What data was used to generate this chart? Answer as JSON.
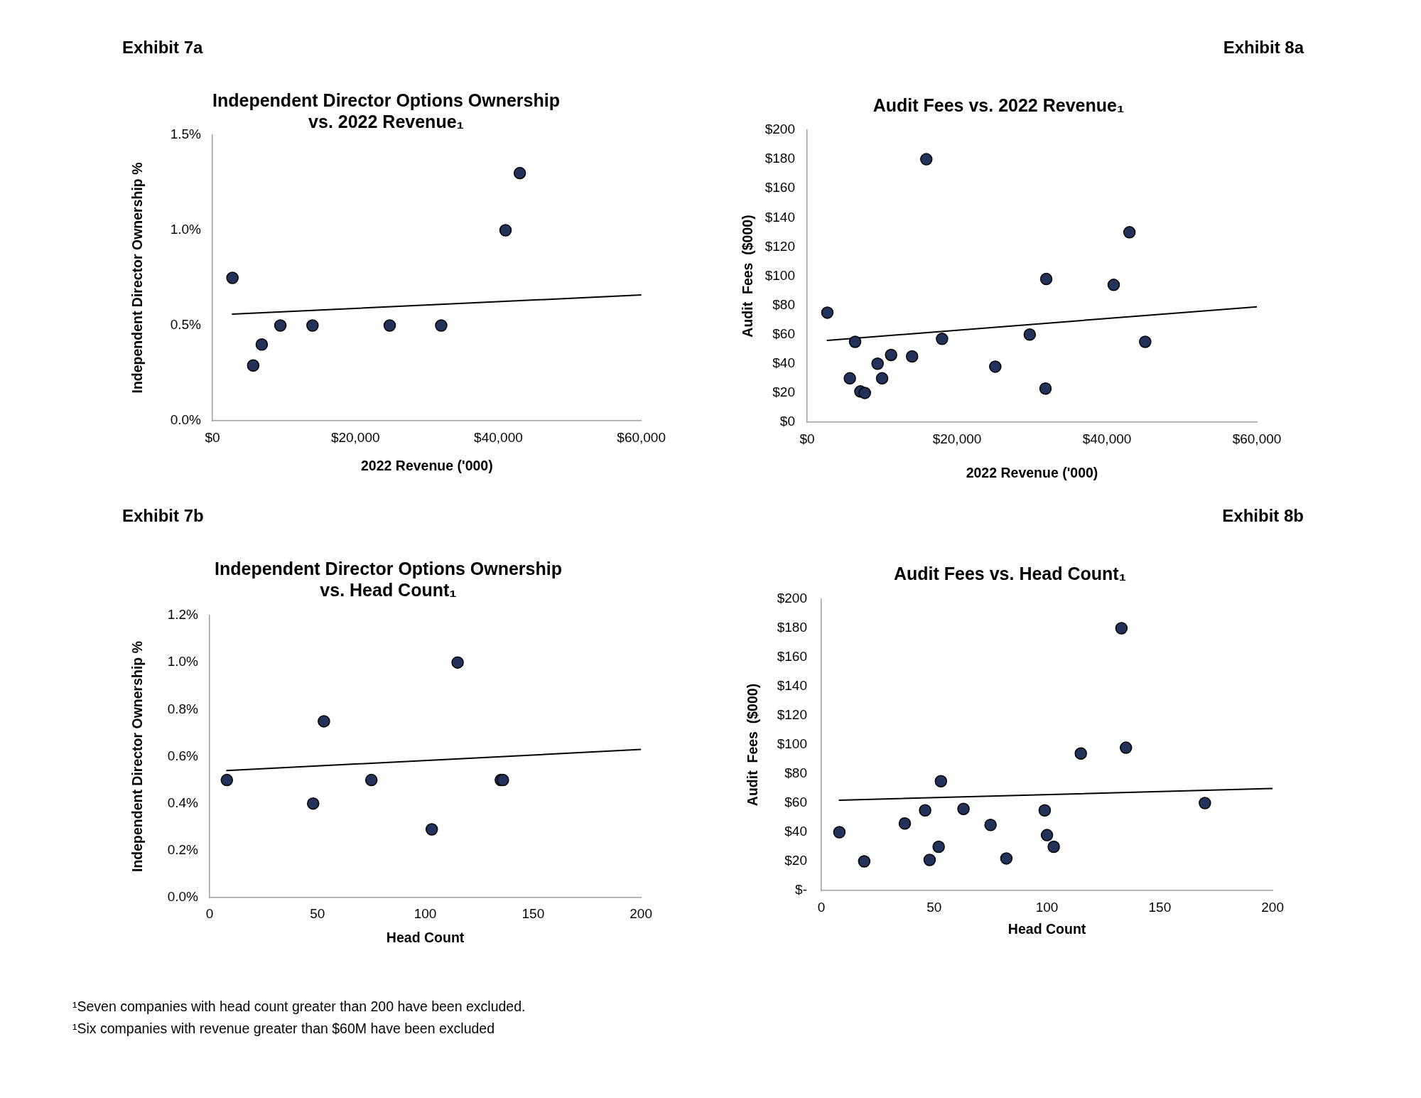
{
  "chart_data": [
    {
      "type": "scatter",
      "title": "Independent Director Options Ownership\nvs. 2022 Revenue₁",
      "xlabel": "2022 Revenue ('000)",
      "ylabel": "Independent Director Ownership %",
      "annotations": [
        "Exhibit 7a"
      ],
      "marker": "circle",
      "x": [
        2800,
        5700,
        6900,
        9500,
        14000,
        24800,
        32000,
        41000,
        43000
      ],
      "series": [
        {
          "type": "scatter",
          "color": "#22325a",
          "values": [
            0.75,
            0.29,
            0.4,
            0.5,
            0.5,
            0.5,
            0.5,
            1,
            1.3
          ]
        },
        {
          "type": "line",
          "color": "#000000",
          "marker": "none",
          "x": [
            2800,
            60000
          ],
          "values": [
            0.56,
            0.66
          ]
        }
      ],
      "xlim": [
        0,
        60000
      ],
      "xticks": [
        {
          "value": 0,
          "label": "$0"
        },
        {
          "value": 20000,
          "label": "$20,000"
        },
        {
          "value": 40000,
          "label": "$40,000"
        },
        {
          "value": 60000,
          "label": "$60,000"
        }
      ],
      "ylim": [
        0,
        1.5
      ],
      "yticks": [
        {
          "value": 0,
          "label": "0.0%"
        },
        {
          "value": 0.5,
          "label": "0.5%"
        },
        {
          "value": 1,
          "label": "1.0%"
        },
        {
          "value": 1.5,
          "label": "1.5%"
        }
      ]
    },
    {
      "type": "scatter",
      "title": "Audit Fees vs. 2022 Revenue₁",
      "xlabel": "2022 Revenue ('000)",
      "ylabel": "Audit  Fees  ($000)",
      "annotations": [
        "Exhibit 8a"
      ],
      "marker": "circle",
      "x": [
        2700,
        6400,
        5700,
        7100,
        7700,
        9400,
        10000,
        11200,
        14000,
        15900,
        18000,
        25100,
        29700,
        31900,
        31800,
        40900,
        43000,
        45100
      ],
      "series": [
        {
          "type": "scatter",
          "color": "#22325a",
          "values": [
            75,
            55,
            30,
            21,
            20,
            40,
            30,
            46,
            45,
            180,
            57,
            38,
            60,
            98,
            23,
            94,
            130,
            55
          ]
        },
        {
          "type": "line",
          "color": "#000000",
          "marker": "none",
          "x": [
            2700,
            60000
          ],
          "values": [
            56,
            79
          ]
        }
      ],
      "xlim": [
        0,
        60000
      ],
      "xticks": [
        {
          "value": 0,
          "label": "$0"
        },
        {
          "value": 20000,
          "label": "$20,000"
        },
        {
          "value": 40000,
          "label": "$40,000"
        },
        {
          "value": 60000,
          "label": "$60,000"
        }
      ],
      "ylim": [
        0,
        200
      ],
      "yticks": [
        {
          "value": 0,
          "label": "$0"
        },
        {
          "value": 20,
          "label": "$20"
        },
        {
          "value": 40,
          "label": "$40"
        },
        {
          "value": 60,
          "label": "$60"
        },
        {
          "value": 80,
          "label": "$80"
        },
        {
          "value": 100,
          "label": "$100"
        },
        {
          "value": 120,
          "label": "$120"
        },
        {
          "value": 140,
          "label": "$140"
        },
        {
          "value": 160,
          "label": "$160"
        },
        {
          "value": 180,
          "label": "$180"
        },
        {
          "value": 200,
          "label": "$200"
        }
      ]
    },
    {
      "type": "scatter",
      "title": "Independent Director Options Ownership\nvs. Head Count₁",
      "xlabel": "Head Count",
      "ylabel": "Independent Director Ownership %",
      "annotations": [
        "Exhibit 7b",
        "¹Seven companies with head count greater than 200 have been excluded.",
        "¹Six companies with revenue greater than $60M have been excluded"
      ],
      "marker": "circle",
      "x": [
        8,
        48,
        53,
        75,
        103,
        115,
        135,
        136
      ],
      "series": [
        {
          "type": "scatter",
          "color": "#22325a",
          "values": [
            0.5,
            0.4,
            0.75,
            0.5,
            0.29,
            1,
            0.5,
            0.5
          ]
        },
        {
          "type": "line",
          "color": "#000000",
          "marker": "none",
          "x": [
            8,
            200
          ],
          "values": [
            0.54,
            0.63
          ]
        }
      ],
      "xlim": [
        0,
        200
      ],
      "xticks": [
        0,
        50,
        100,
        150,
        200
      ],
      "ylim": [
        0,
        1.2
      ],
      "yticks": [
        {
          "value": 0,
          "label": "0.0%"
        },
        {
          "value": 0.2,
          "label": "0.2%"
        },
        {
          "value": 0.4,
          "label": "0.4%"
        },
        {
          "value": 0.6,
          "label": "0.6%"
        },
        {
          "value": 0.8,
          "label": "0.8%"
        },
        {
          "value": 1,
          "label": "1.0%"
        },
        {
          "value": 1.2,
          "label": "1.2%"
        }
      ]
    },
    {
      "type": "scatter",
      "title": "Audit Fees vs. Head Count₁",
      "xlabel": "Head Count",
      "ylabel": "Audit  Fees  ($000)",
      "annotations": [
        "Exhibit 8b"
      ],
      "marker": "circle",
      "x": [
        8,
        19,
        37,
        46,
        53,
        52,
        48,
        63,
        75,
        82,
        99,
        100,
        103,
        115,
        133,
        135,
        170
      ],
      "series": [
        {
          "type": "scatter",
          "color": "#22325a",
          "values": [
            40,
            20,
            46,
            55,
            75,
            30,
            21,
            56,
            45,
            22,
            55,
            38,
            30,
            94,
            180,
            98,
            60
          ]
        },
        {
          "type": "line",
          "color": "#000000",
          "marker": "none",
          "x": [
            8,
            200
          ],
          "values": [
            62,
            70
          ]
        }
      ],
      "xlim": [
        0,
        200
      ],
      "xticks": [
        0,
        50,
        100,
        150,
        200
      ],
      "ylim": [
        0,
        200
      ],
      "yticks": [
        {
          "value": 0,
          "label": "$-"
        },
        {
          "value": 20,
          "label": "$20"
        },
        {
          "value": 40,
          "label": "$40"
        },
        {
          "value": 60,
          "label": "$60"
        },
        {
          "value": 80,
          "label": "$80"
        },
        {
          "value": 100,
          "label": "$100"
        },
        {
          "value": 120,
          "label": "$120"
        },
        {
          "value": 140,
          "label": "$140"
        },
        {
          "value": 160,
          "label": "$160"
        },
        {
          "value": 180,
          "label": "$180"
        },
        {
          "value": 200,
          "label": "$200"
        }
      ]
    }
  ]
}
